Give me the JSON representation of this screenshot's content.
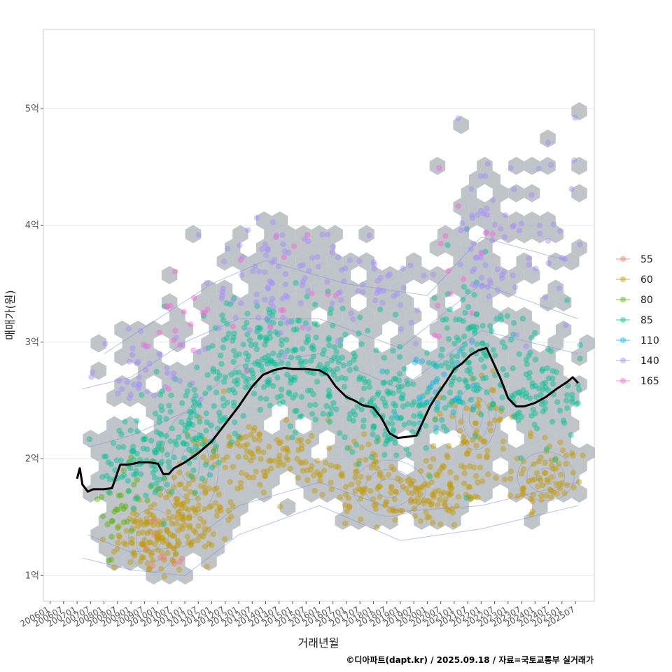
{
  "chart_data": {
    "type": "scatter",
    "title": "",
    "xlabel": "거래년월",
    "ylabel": "매매가(원)",
    "caption": "©디아파트(dapt.kr) / 2025.09.18 / 자료=국토교통부 실거래가",
    "x_range": [
      2005.75,
      2026.2
    ],
    "ylim": [
      0.78,
      5.68
    ],
    "y_ticks": [
      {
        "value": 1,
        "label": "1억"
      },
      {
        "value": 2,
        "label": "2억"
      },
      {
        "value": 3,
        "label": "3억"
      },
      {
        "value": 4,
        "label": "4억"
      },
      {
        "value": 5,
        "label": "5억"
      }
    ],
    "x_ticks": [
      "200601",
      "200607",
      "200701",
      "200707",
      "200801",
      "200807",
      "200901",
      "200907",
      "201001",
      "201007",
      "201101",
      "201107",
      "201201",
      "201207",
      "201301",
      "201307",
      "201401",
      "201407",
      "201501",
      "201507",
      "201601",
      "201607",
      "201701",
      "201707",
      "201801",
      "201807",
      "201901",
      "201907",
      "202001",
      "202007",
      "202101",
      "202107",
      "202201",
      "202207",
      "202301",
      "202307",
      "202401",
      "202407",
      "202501",
      "202507"
    ],
    "legend": {
      "position": "right",
      "entries": [
        {
          "name": "55",
          "color": "#F8766D"
        },
        {
          "name": "60",
          "color": "#C49A00"
        },
        {
          "name": "80",
          "color": "#53B400"
        },
        {
          "name": "85",
          "color": "#00C094"
        },
        {
          "name": "110",
          "color": "#00B6EB"
        },
        {
          "name": "140",
          "color": "#A58AFF"
        },
        {
          "name": "165",
          "color": "#FB61D7"
        }
      ]
    },
    "series": [
      {
        "name": "60",
        "color": "#C49A00",
        "clusters": [
          {
            "x": 2009.7,
            "y": 1.3,
            "sx": 0.7,
            "sy": 0.15,
            "n": 110
          },
          {
            "x": 2011.2,
            "y": 1.6,
            "sx": 0.8,
            "sy": 0.2,
            "n": 110
          },
          {
            "x": 2013.5,
            "y": 2.05,
            "sx": 1.0,
            "sy": 0.15,
            "n": 80
          },
          {
            "x": 2016.0,
            "y": 1.95,
            "sx": 1.0,
            "sy": 0.15,
            "n": 40
          },
          {
            "x": 2018.5,
            "y": 1.75,
            "sx": 1.2,
            "sy": 0.15,
            "n": 110
          },
          {
            "x": 2020.7,
            "y": 1.7,
            "sx": 0.7,
            "sy": 0.15,
            "n": 60
          },
          {
            "x": 2021.8,
            "y": 2.3,
            "sx": 0.8,
            "sy": 0.2,
            "n": 60
          },
          {
            "x": 2024.4,
            "y": 1.85,
            "sx": 0.9,
            "sy": 0.15,
            "n": 80
          }
        ]
      },
      {
        "name": "80",
        "color": "#53B400",
        "clusters": [
          {
            "x": 2008.6,
            "y": 1.55,
            "sx": 0.5,
            "sy": 0.25,
            "n": 30
          }
        ]
      },
      {
        "name": "85",
        "color": "#00C094",
        "clusters": [
          {
            "x": 2009.3,
            "y": 1.95,
            "sx": 0.7,
            "sy": 0.15,
            "n": 70
          },
          {
            "x": 2011.3,
            "y": 2.25,
            "sx": 0.9,
            "sy": 0.25,
            "n": 120
          },
          {
            "x": 2013.8,
            "y": 2.9,
            "sx": 1.1,
            "sy": 0.25,
            "n": 150
          },
          {
            "x": 2016.5,
            "y": 2.75,
            "sx": 1.2,
            "sy": 0.25,
            "n": 120
          },
          {
            "x": 2019.0,
            "y": 2.4,
            "sx": 1.2,
            "sy": 0.2,
            "n": 120
          },
          {
            "x": 2021.6,
            "y": 2.95,
            "sx": 0.8,
            "sy": 0.3,
            "n": 110
          },
          {
            "x": 2024.2,
            "y": 2.55,
            "sx": 1.0,
            "sy": 0.25,
            "n": 100
          }
        ]
      },
      {
        "name": "110",
        "color": "#00B6EB",
        "clusters": [
          {
            "x": 2020.5,
            "y": 2.6,
            "sx": 0.8,
            "sy": 0.2,
            "n": 25
          }
        ]
      },
      {
        "name": "140",
        "color": "#A58AFF",
        "clusters": [
          {
            "x": 2009.8,
            "y": 2.75,
            "sx": 0.9,
            "sy": 0.15,
            "n": 40
          },
          {
            "x": 2014.5,
            "y": 3.55,
            "sx": 1.2,
            "sy": 0.3,
            "n": 80
          },
          {
            "x": 2018.0,
            "y": 3.5,
            "sx": 1.2,
            "sy": 0.2,
            "n": 40
          },
          {
            "x": 2022.0,
            "y": 3.9,
            "sx": 0.7,
            "sy": 0.4,
            "n": 50
          },
          {
            "x": 2024.5,
            "y": 3.9,
            "sx": 0.9,
            "sy": 0.4,
            "n": 30
          }
        ]
      },
      {
        "name": "165",
        "color": "#FB61D7",
        "clusters": [
          {
            "x": 2010.3,
            "y": 3.05,
            "sx": 1.0,
            "sy": 0.2,
            "n": 20
          },
          {
            "x": 2015.0,
            "y": 3.6,
            "sx": 1.0,
            "sy": 0.3,
            "n": 12
          },
          {
            "x": 2021.5,
            "y": 3.8,
            "sx": 0.8,
            "sy": 0.5,
            "n": 14
          }
        ]
      },
      {
        "name": "55",
        "color": "#F8766D",
        "clusters": [
          {
            "x": 2010.0,
            "y": 1.2,
            "sx": 0.5,
            "sy": 0.1,
            "n": 10
          }
        ]
      }
    ],
    "trend": {
      "name": "moving average",
      "color": "#000000",
      "points": [
        [
          2007.0,
          1.83
        ],
        [
          2007.1,
          1.92
        ],
        [
          2007.2,
          1.78
        ],
        [
          2007.4,
          1.72
        ],
        [
          2007.6,
          1.74
        ],
        [
          2008.0,
          1.74
        ],
        [
          2008.3,
          1.75
        ],
        [
          2008.6,
          1.95
        ],
        [
          2008.9,
          1.95
        ],
        [
          2009.3,
          1.97
        ],
        [
          2009.7,
          1.97
        ],
        [
          2010.0,
          1.96
        ],
        [
          2010.2,
          1.87
        ],
        [
          2010.4,
          1.87
        ],
        [
          2010.6,
          1.92
        ],
        [
          2011.0,
          1.97
        ],
        [
          2011.5,
          2.05
        ],
        [
          2012.0,
          2.15
        ],
        [
          2012.5,
          2.3
        ],
        [
          2013.0,
          2.45
        ],
        [
          2013.5,
          2.62
        ],
        [
          2013.9,
          2.72
        ],
        [
          2014.3,
          2.76
        ],
        [
          2014.7,
          2.78
        ],
        [
          2015.0,
          2.77
        ],
        [
          2015.5,
          2.77
        ],
        [
          2016.0,
          2.76
        ],
        [
          2016.3,
          2.72
        ],
        [
          2016.6,
          2.62
        ],
        [
          2017.0,
          2.53
        ],
        [
          2017.3,
          2.5
        ],
        [
          2017.6,
          2.46
        ],
        [
          2018.0,
          2.44
        ],
        [
          2018.3,
          2.35
        ],
        [
          2018.6,
          2.22
        ],
        [
          2018.9,
          2.18
        ],
        [
          2019.3,
          2.19
        ],
        [
          2019.6,
          2.2
        ],
        [
          2019.8,
          2.3
        ],
        [
          2020.1,
          2.45
        ],
        [
          2020.4,
          2.56
        ],
        [
          2020.7,
          2.66
        ],
        [
          2021.0,
          2.77
        ],
        [
          2021.3,
          2.82
        ],
        [
          2021.6,
          2.89
        ],
        [
          2021.9,
          2.93
        ],
        [
          2022.2,
          2.95
        ],
        [
          2022.4,
          2.85
        ],
        [
          2022.7,
          2.7
        ],
        [
          2023.0,
          2.52
        ],
        [
          2023.3,
          2.45
        ],
        [
          2023.6,
          2.45
        ],
        [
          2024.0,
          2.48
        ],
        [
          2024.4,
          2.53
        ],
        [
          2024.8,
          2.6
        ],
        [
          2025.2,
          2.66
        ],
        [
          2025.4,
          2.7
        ],
        [
          2025.6,
          2.65
        ]
      ]
    },
    "hexbin": {
      "color": "#B4BAC0",
      "x_span": [
        2007.0,
        2025.8
      ],
      "y_span": [
        0.98,
        5.45
      ]
    },
    "density_contours": {
      "color": "#7B8FE0"
    }
  }
}
